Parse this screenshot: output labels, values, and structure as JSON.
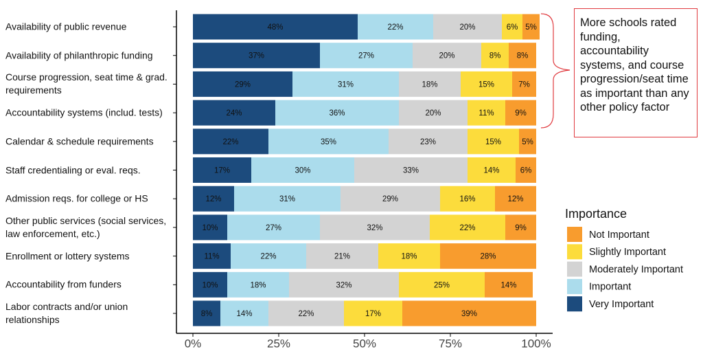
{
  "chart_data": {
    "type": "stacked-barh",
    "annotation": "More schools rated funding, accountability systems, and course progression/seat time as important than any other policy factor",
    "legend_title": "Importance",
    "categories": [
      "Availability of public revenue",
      "Availability of philanthropic funding",
      "Course progression, seat time & grad. requirements",
      "Accountability systems (includ. tests)",
      "Calendar & schedule requirements",
      "Staff credentialing or eval. reqs.",
      "Admission reqs. for college or HS",
      "Other public services (social services, law enforcement, etc.)",
      "Enrollment or lottery systems",
      "Accountability from funders",
      "Labor contracts and/or union relationships"
    ],
    "series": [
      {
        "name": "Very Important",
        "color": "#1c4b7d",
        "values": [
          48,
          37,
          29,
          24,
          22,
          17,
          12,
          10,
          11,
          10,
          8
        ],
        "value_labels": [
          "48%",
          "37%",
          "29%",
          "24%",
          "22%",
          "17%",
          "12%",
          "10%",
          "11%",
          "10%",
          "8%"
        ]
      },
      {
        "name": "Important",
        "color": "#abdcec",
        "values": [
          22,
          27,
          31,
          36,
          35,
          30,
          31,
          27,
          22,
          18,
          14
        ],
        "value_labels": [
          "22%",
          "27%",
          "31%",
          "36%",
          "35%",
          "30%",
          "31%",
          "27%",
          "22%",
          "18%",
          "14%"
        ]
      },
      {
        "name": "Moderately Important",
        "color": "#d3d3d3",
        "values": [
          20,
          20,
          18,
          20,
          23,
          33,
          29,
          32,
          21,
          32,
          22
        ],
        "value_labels": [
          "20%",
          "20%",
          "18%",
          "20%",
          "23%",
          "33%",
          "29%",
          "32%",
          "21%",
          "32%",
          "22%"
        ]
      },
      {
        "name": "Slightly Important",
        "color": "#fcdc3c",
        "values": [
          6,
          8,
          15,
          11,
          15,
          14,
          16,
          22,
          18,
          25,
          17
        ],
        "value_labels": [
          "6%",
          "8%",
          "15%",
          "11%",
          "15%",
          "14%",
          "16%",
          "22%",
          "18%",
          "25%",
          "17%"
        ]
      },
      {
        "name": "Not Important",
        "color": "#f89c2e",
        "values": [
          5,
          8,
          7,
          9,
          5,
          6,
          12,
          9,
          28,
          14,
          39
        ],
        "value_labels": [
          "5%",
          "8%",
          "7%",
          "9%",
          "5%",
          "6%",
          "12%",
          "9%",
          "28%",
          "14%",
          "39%"
        ]
      }
    ],
    "xlim": [
      0,
      100
    ],
    "xticks": [
      {
        "value": 0,
        "label": "0%"
      },
      {
        "value": 25,
        "label": "25%"
      },
      {
        "value": 50,
        "label": "50%"
      },
      {
        "value": 75,
        "label": "75%"
      },
      {
        "value": 100,
        "label": "100%"
      }
    ],
    "legend": "right"
  }
}
